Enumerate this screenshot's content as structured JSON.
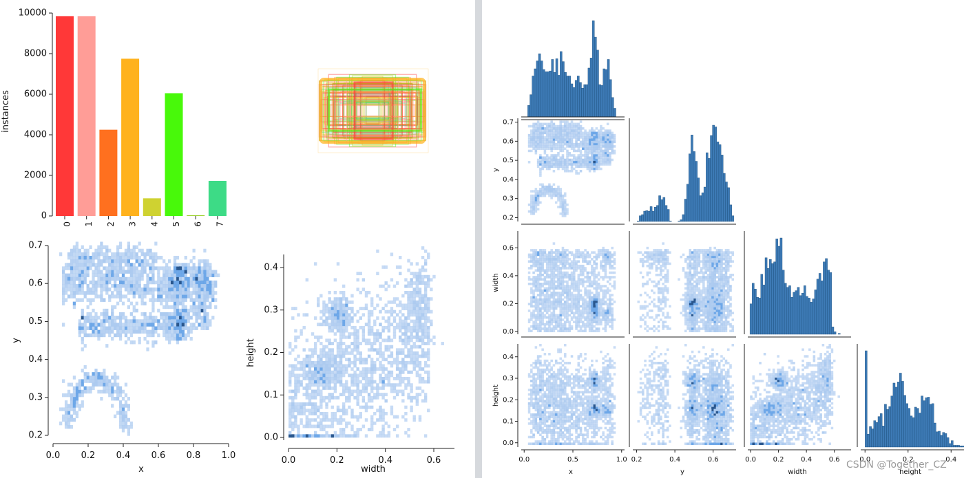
{
  "watermark": "CSDN @Together_CZ",
  "colors": {
    "heat_light": "#a9c8ef",
    "heat_mid": "#5f9fe6",
    "heat_dark": "#1f4e88",
    "hist": "#3d7ab5",
    "hist_edge": "#1d4f7d",
    "divider": "#cfd3d8"
  },
  "chart_data": [
    {
      "id": "labels-bar",
      "type": "bar",
      "categories": [
        "0",
        "1",
        "2",
        "3",
        "4",
        "5",
        "6",
        "7"
      ],
      "values": [
        9850,
        9850,
        4250,
        7750,
        870,
        6050,
        30,
        1730
      ],
      "colors": [
        "#ff3838",
        "#ff9d97",
        "#ff701f",
        "#ffb21d",
        "#cfd231",
        "#48f90a",
        "#92cc17",
        "#3ddb86"
      ],
      "xlabel": "",
      "ylabel": "instances",
      "yticks": [
        "0",
        "2000",
        "4000",
        "6000",
        "8000",
        "10000"
      ],
      "ylim": [
        0,
        10000
      ]
    },
    {
      "id": "box-overlay",
      "type": "other",
      "description_only": true,
      "note": "overlay of normalized bounding boxes colored by class"
    },
    {
      "id": "xy-heatmap",
      "type": "heatmap",
      "xlabel": "x",
      "ylabel": "y",
      "xticks": [
        "0.0",
        "0.2",
        "0.4",
        "0.6",
        "0.8",
        "1.0"
      ],
      "yticks": [
        "0.2",
        "0.3",
        "0.4",
        "0.5",
        "0.6",
        "0.7"
      ],
      "xlim": [
        0,
        1
      ],
      "ylim": [
        0.18,
        0.72
      ]
    },
    {
      "id": "wh-heatmap",
      "type": "heatmap",
      "xlabel": "width",
      "ylabel": "height",
      "xticks": [
        "0.0",
        "0.2",
        "0.4",
        "0.6"
      ],
      "yticks": [
        "0.0",
        "0.1",
        "0.2",
        "0.3",
        "0.4"
      ],
      "xlim": [
        -0.02,
        0.72
      ],
      "ylim": [
        -0.03,
        0.46
      ]
    },
    {
      "id": "pairplot",
      "type": "heatmap",
      "variables": [
        "x",
        "y",
        "width",
        "height"
      ],
      "ranges": {
        "x": [
          -0.03,
          1.03
        ],
        "y": [
          0.18,
          0.72
        ],
        "width": [
          -0.02,
          0.72
        ],
        "height": [
          -0.02,
          0.46
        ]
      },
      "ticks": {
        "x": [
          "0.0",
          "0.5",
          "1.0"
        ],
        "y": [
          "0.2",
          "0.4",
          "0.6"
        ],
        "width": [
          "0.0",
          "0.2",
          "0.4",
          "0.6"
        ],
        "height": [
          "0.0",
          "0.2",
          "0.4"
        ]
      },
      "row_ticks": {
        "y": [
          "0.2",
          "0.3",
          "0.4",
          "0.5",
          "0.6",
          "0.7"
        ],
        "width": [
          "0.0",
          "0.2",
          "0.4",
          "0.6"
        ],
        "height": [
          "0.0",
          "0.1",
          "0.2",
          "0.3",
          "0.4"
        ]
      }
    }
  ]
}
